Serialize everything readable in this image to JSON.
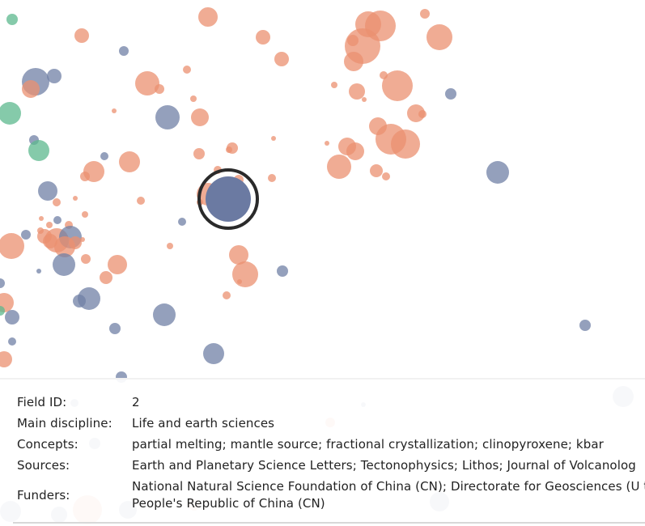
{
  "colors": {
    "earth_sciences": "#eb9070",
    "selected_discipline": "#7080a6",
    "other_discipline": "#5cb88e",
    "selection_ring": "#2a2a2a"
  },
  "selected_field": {
    "label_field_id": "Field ID:",
    "field_id": "2",
    "label_main_discipline": "Main discipline:",
    "main_discipline": "Life and earth sciences",
    "label_concepts": "Concepts:",
    "concepts": "partial melting; mantle source; fractional crystallization; clinopyroxene; kbar",
    "label_sources": "Sources:",
    "sources": "Earth and Planetary Science Letters; Tectonophysics; Lithos; Journal of Volcanolog",
    "label_funders": "Funders:",
    "funders": "National Natural Science Foundation of China (CN); Directorate for Geosciences (U the People's Republic of China (CN)"
  }
}
